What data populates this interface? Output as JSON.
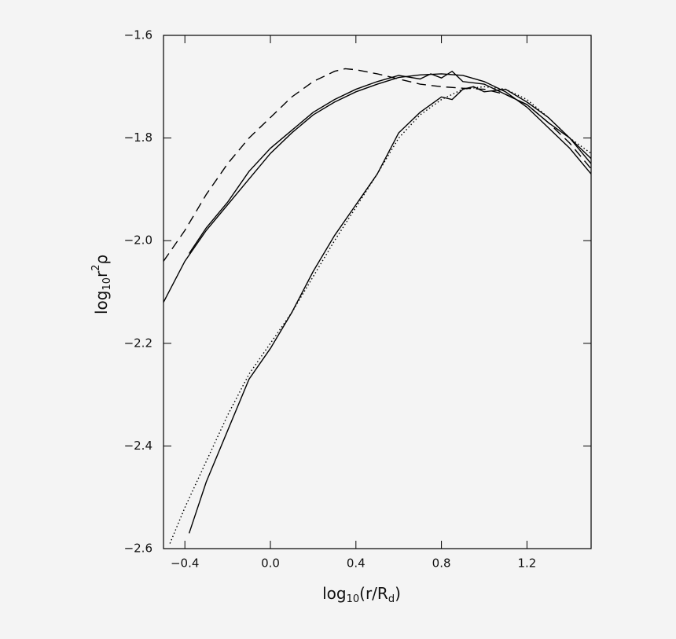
{
  "chart_data": {
    "type": "line",
    "xlim": [
      -0.5,
      1.5
    ],
    "ylim": [
      -2.6,
      -1.6
    ],
    "xticks": [
      {
        "value": -0.4,
        "label": "−0.4"
      },
      {
        "value": 0,
        "label": "0.0"
      },
      0.4,
      0.8,
      1.2
    ],
    "yticks": [
      {
        "value": -2.6,
        "label": "−2.6"
      },
      {
        "value": -2.4,
        "label": "−2.4"
      },
      {
        "value": -2.2,
        "label": "−2.2"
      },
      {
        "value": -2.0,
        "label": "−2.0"
      },
      {
        "value": -1.8,
        "label": "−1.8"
      },
      {
        "value": -1.6,
        "label": "−1.6"
      }
    ],
    "xlabel": {
      "log": "log",
      "base": "10",
      "arg": "(r/R",
      "sub": "d",
      "close": ")"
    },
    "ylabel": {
      "log": "log",
      "base": "10",
      "r": "r",
      "power": "2",
      "rho": "ρ"
    },
    "grid": false,
    "series": [
      {
        "color": "#000000",
        "style": "dashed",
        "x": [
          -0.5,
          -0.4,
          -0.3,
          -0.2,
          -0.1,
          0.0,
          0.1,
          0.2,
          0.3,
          0.35,
          0.4,
          0.5,
          0.6,
          0.7,
          0.8,
          0.9,
          1.0,
          1.1,
          1.2,
          1.3,
          1.4,
          1.5
        ],
        "values": [
          -2.04,
          -1.98,
          -1.91,
          -1.85,
          -1.8,
          -1.76,
          -1.72,
          -1.69,
          -1.67,
          -1.665,
          -1.667,
          -1.675,
          -1.685,
          -1.695,
          -1.7,
          -1.703,
          -1.705,
          -1.715,
          -1.735,
          -1.77,
          -1.81,
          -1.86
        ]
      },
      {
        "color": "#000000",
        "style": "solid",
        "x": [
          -0.5,
          -0.4,
          -0.3,
          -0.2,
          -0.1,
          0.0,
          0.1,
          0.2,
          0.3,
          0.4,
          0.5,
          0.6,
          0.7,
          0.8,
          0.9,
          1.0,
          1.1,
          1.2,
          1.3,
          1.4,
          1.5
        ],
        "values": [
          -2.12,
          -2.04,
          -1.98,
          -1.93,
          -1.88,
          -1.83,
          -1.79,
          -1.755,
          -1.73,
          -1.71,
          -1.695,
          -1.682,
          -1.677,
          -1.675,
          -1.678,
          -1.69,
          -1.71,
          -1.74,
          -1.78,
          -1.82,
          -1.87
        ]
      },
      {
        "color": "#000000",
        "style": "solid",
        "x": [
          -0.38,
          -0.3,
          -0.2,
          -0.1,
          0.0,
          0.1,
          0.2,
          0.3,
          0.4,
          0.5,
          0.6,
          0.7,
          0.75,
          0.8,
          0.85,
          0.9,
          1.0,
          1.1,
          1.2,
          1.3,
          1.4,
          1.5
        ],
        "values": [
          -2.025,
          -1.975,
          -1.925,
          -1.865,
          -1.82,
          -1.785,
          -1.75,
          -1.725,
          -1.705,
          -1.69,
          -1.678,
          -1.685,
          -1.675,
          -1.683,
          -1.67,
          -1.69,
          -1.695,
          -1.715,
          -1.735,
          -1.77,
          -1.8,
          -1.85
        ]
      },
      {
        "color": "#000000",
        "style": "solid",
        "x": [
          -0.38,
          -0.3,
          -0.2,
          -0.1,
          0.0,
          0.1,
          0.2,
          0.3,
          0.4,
          0.5,
          0.6,
          0.7,
          0.8,
          0.85,
          0.9,
          0.95,
          1.0,
          1.1,
          1.2,
          1.3,
          1.4,
          1.5
        ],
        "values": [
          -2.57,
          -2.47,
          -2.37,
          -2.27,
          -2.21,
          -2.14,
          -2.06,
          -1.99,
          -1.93,
          -1.87,
          -1.79,
          -1.75,
          -1.72,
          -1.725,
          -1.705,
          -1.7,
          -1.71,
          -1.705,
          -1.73,
          -1.76,
          -1.8,
          -1.84
        ]
      },
      {
        "color": "#000000",
        "style": "dotted",
        "x": [
          -0.47,
          -0.4,
          -0.3,
          -0.2,
          -0.1,
          0.0,
          0.1,
          0.2,
          0.3,
          0.4,
          0.5,
          0.6,
          0.7,
          0.8,
          0.9,
          1.0,
          1.1,
          1.2,
          1.3,
          1.4,
          1.5
        ],
        "values": [
          -2.59,
          -2.52,
          -2.43,
          -2.34,
          -2.26,
          -2.2,
          -2.14,
          -2.07,
          -2.0,
          -1.935,
          -1.87,
          -1.8,
          -1.755,
          -1.725,
          -1.705,
          -1.7,
          -1.705,
          -1.725,
          -1.76,
          -1.8,
          -1.83
        ]
      }
    ]
  }
}
